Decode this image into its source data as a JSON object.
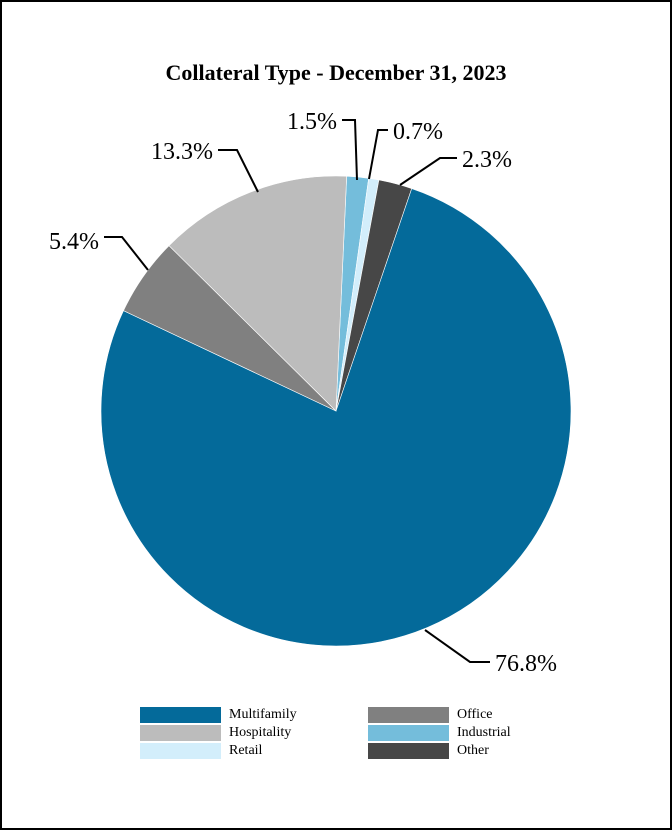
{
  "chart_data": {
    "type": "pie",
    "title": "Collateral Type - December 31, 2023",
    "slices": [
      {
        "name": "Industrial",
        "value": 1.5,
        "label": "1.5%",
        "color": "#74bddb"
      },
      {
        "name": "Retail",
        "value": 0.7,
        "label": "0.7%",
        "color": "#d3eefb"
      },
      {
        "name": "Other",
        "value": 2.3,
        "label": "2.3%",
        "color": "#474747"
      },
      {
        "name": "Multifamily",
        "value": 76.8,
        "label": "76.8%",
        "color": "#046a9a"
      },
      {
        "name": "Office",
        "value": 5.4,
        "label": "5.4%",
        "color": "#808080"
      },
      {
        "name": "Hospitality",
        "value": 13.3,
        "label": "13.3%",
        "color": "#bcbcbc"
      }
    ],
    "legend": [
      "Multifamily",
      "Office",
      "Hospitality",
      "Industrial",
      "Retail",
      "Other"
    ],
    "legend_placement": "bottom"
  }
}
